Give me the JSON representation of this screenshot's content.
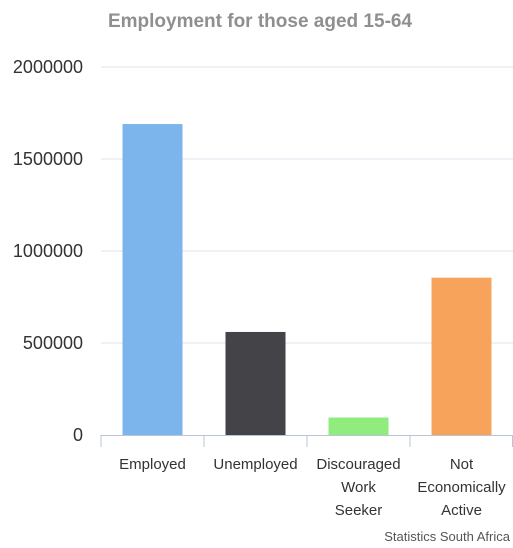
{
  "chart_data": {
    "type": "bar",
    "title": "Employment for those aged 15-64",
    "categories": [
      [
        "Employed"
      ],
      [
        "Unemployed"
      ],
      [
        "Discouraged",
        "Work",
        "Seeker"
      ],
      [
        "Not",
        "Economically",
        "Active"
      ]
    ],
    "values": [
      1690000,
      560000,
      95000,
      855000
    ],
    "colors": [
      "#7cb5ec",
      "#434348",
      "#90ed7d",
      "#f7a35c"
    ],
    "ylim": [
      0,
      2000000
    ],
    "yticks": [
      "2000000",
      "1500000",
      "1000000",
      "500000",
      "0"
    ],
    "ytick_values": [
      2000000,
      1500000,
      1000000,
      500000,
      0
    ],
    "grid": true,
    "legend": "none"
  },
  "credit": "Statistics South Africa"
}
